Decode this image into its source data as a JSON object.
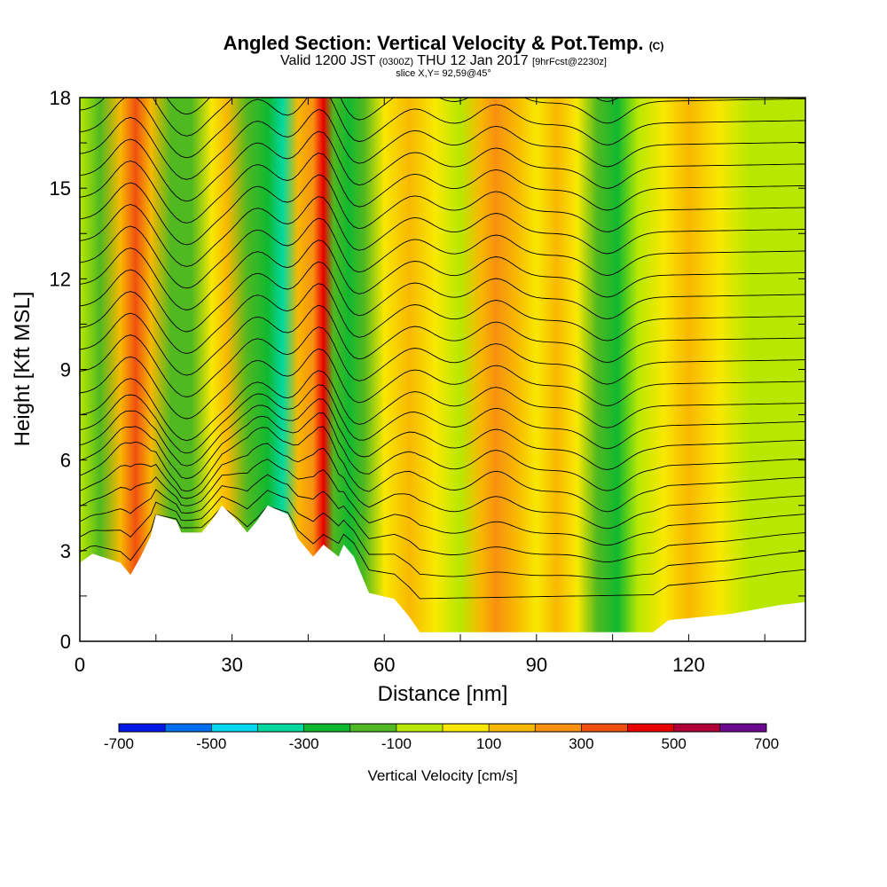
{
  "header": {
    "title": "Angled Section: Vertical Velocity & Pot.Temp.",
    "title_unit": "(C)",
    "valid_prefix": "Valid 1200 JST",
    "valid_utc": "(0300Z)",
    "valid_date": "THU 12 Jan 2017",
    "forecast": "[9hrFcst@2230z]",
    "slice": "slice X,Y= 92,59@45°"
  },
  "chart_data": {
    "type": "heatmap",
    "xlabel": "Distance [nm]",
    "ylabel": "Height [Kft MSL]",
    "xlim": [
      0,
      143
    ],
    "ylim": [
      0,
      18
    ],
    "xticks": [
      0,
      30,
      60,
      90,
      120
    ],
    "yticks": [
      0,
      3,
      6,
      9,
      12,
      15,
      18
    ],
    "colorbar": {
      "title": "Vertical Velocity [cm/s]",
      "labels": [
        "-700",
        "-500",
        "-300",
        "-100",
        "100",
        "300",
        "500",
        "700"
      ],
      "bins": [
        -700,
        -600,
        -500,
        -400,
        -300,
        -200,
        -100,
        0,
        100,
        200,
        300,
        400,
        500,
        600,
        700
      ],
      "colors": [
        "#0018e8",
        "#0070f0",
        "#00d8f0",
        "#00d8a0",
        "#10b830",
        "#50b820",
        "#b8e800",
        "#f8e800",
        "#f8b800",
        "#f89010",
        "#f05010",
        "#e80000",
        "#b00038",
        "#6a0890"
      ]
    },
    "velocity_columns": [
      {
        "x": 0,
        "v": -60
      },
      {
        "x": 4,
        "v": -120
      },
      {
        "x": 8,
        "v": 120
      },
      {
        "x": 11,
        "v": 320
      },
      {
        "x": 14,
        "v": 120
      },
      {
        "x": 18,
        "v": -160
      },
      {
        "x": 22,
        "v": -180
      },
      {
        "x": 26,
        "v": 60
      },
      {
        "x": 29,
        "v": 110
      },
      {
        "x": 33,
        "v": -140
      },
      {
        "x": 37,
        "v": -220
      },
      {
        "x": 40,
        "v": -330
      },
      {
        "x": 43,
        "v": 100
      },
      {
        "x": 46,
        "v": 260
      },
      {
        "x": 48,
        "v": 450
      },
      {
        "x": 50,
        "v": -120
      },
      {
        "x": 53,
        "v": -300
      },
      {
        "x": 56,
        "v": -160
      },
      {
        "x": 60,
        "v": 60
      },
      {
        "x": 65,
        "v": 110
      },
      {
        "x": 70,
        "v": 60
      },
      {
        "x": 75,
        "v": -60
      },
      {
        "x": 79,
        "v": 120
      },
      {
        "x": 82,
        "v": 230
      },
      {
        "x": 86,
        "v": 120
      },
      {
        "x": 90,
        "v": 60
      },
      {
        "x": 94,
        "v": 110
      },
      {
        "x": 98,
        "v": 60
      },
      {
        "x": 102,
        "v": -160
      },
      {
        "x": 106,
        "v": -240
      },
      {
        "x": 110,
        "v": -90
      },
      {
        "x": 115,
        "v": 60
      },
      {
        "x": 120,
        "v": 110
      },
      {
        "x": 126,
        "v": 60
      },
      {
        "x": 132,
        "v": -60
      },
      {
        "x": 138,
        "v": -90
      },
      {
        "x": 143,
        "v": -60
      }
    ],
    "terrain": [
      {
        "x": 0,
        "h": 2.6
      },
      {
        "x": 2.5,
        "h": 2.9
      },
      {
        "x": 8,
        "h": 2.6
      },
      {
        "x": 10,
        "h": 2.2
      },
      {
        "x": 12,
        "h": 2.8
      },
      {
        "x": 14,
        "h": 3.5
      },
      {
        "x": 15,
        "h": 4.2
      },
      {
        "x": 19,
        "h": 4.0
      },
      {
        "x": 20,
        "h": 3.6
      },
      {
        "x": 24,
        "h": 3.6
      },
      {
        "x": 26,
        "h": 4.0
      },
      {
        "x": 28,
        "h": 4.5
      },
      {
        "x": 31,
        "h": 4.0
      },
      {
        "x": 33,
        "h": 3.6
      },
      {
        "x": 35,
        "h": 4.0
      },
      {
        "x": 37,
        "h": 4.5
      },
      {
        "x": 41,
        "h": 4.2
      },
      {
        "x": 43,
        "h": 3.4
      },
      {
        "x": 46,
        "h": 2.8
      },
      {
        "x": 48,
        "h": 3.2
      },
      {
        "x": 51,
        "h": 2.8
      },
      {
        "x": 52,
        "h": 3.2
      },
      {
        "x": 54,
        "h": 2.8
      },
      {
        "x": 57,
        "h": 1.6
      },
      {
        "x": 62,
        "h": 1.4
      },
      {
        "x": 65,
        "h": 0.8
      },
      {
        "x": 67,
        "h": 0.3
      },
      {
        "x": 90,
        "h": 0.3
      },
      {
        "x": 113,
        "h": 0.3
      },
      {
        "x": 116,
        "h": 0.7
      },
      {
        "x": 128,
        "h": 0.9
      },
      {
        "x": 138,
        "h": 1.2
      },
      {
        "x": 143,
        "h": 1.3
      }
    ]
  }
}
